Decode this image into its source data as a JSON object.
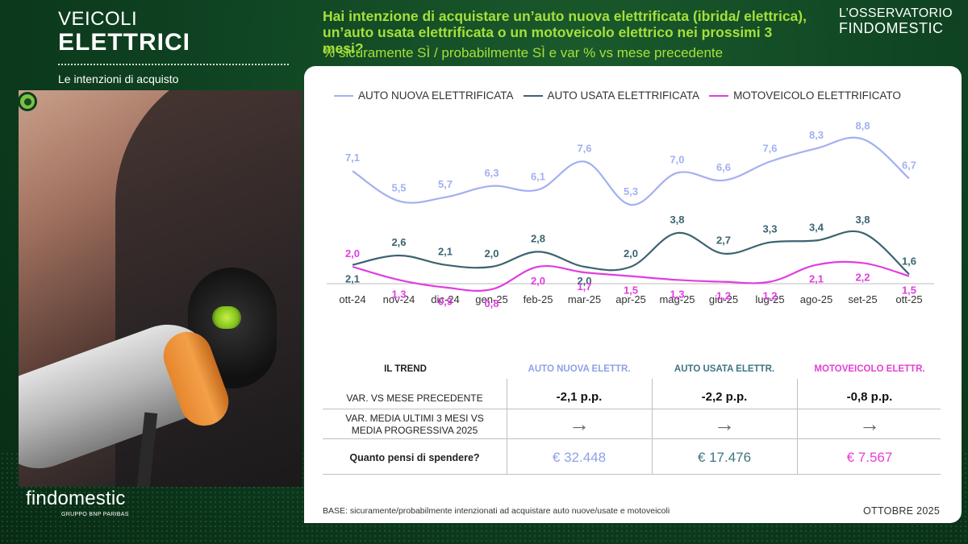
{
  "header": {
    "title_line1": "VEICOLI",
    "title_line2": "ELETTRICI",
    "subtitle": "Le intenzioni di acquisto",
    "question": "Hai intenzione di acquistare un’auto nuova elettrificata (ibrida/ elettrica), un’auto usata elettrificata o un motoveicolo elettrico nei prossimi 3 mesi?",
    "question_sub": "% sicuramente SÌ / probabilmente SÌ e var % vs mese precedente",
    "osservatorio_line1": "L’OSSERVATORIO",
    "osservatorio_line2": "FINDOMESTIC"
  },
  "logo": {
    "name": "findomestic",
    "group": "GRUPPO BNP PARIBAS"
  },
  "colors": {
    "nuova": "#a3b0f0",
    "usata": "#3b6470",
    "moto": "#e03ee0"
  },
  "chart_data": {
    "type": "line",
    "categories": [
      "ott-24",
      "nov-24",
      "dic-24",
      "gen-25",
      "feb-25",
      "mar-25",
      "apr-25",
      "mag-25",
      "giu-25",
      "lug-25",
      "ago-25",
      "set-25",
      "ott-25"
    ],
    "series": [
      {
        "name": "AUTO NUOVA ELETTRIFICATA",
        "values": [
          7.1,
          5.5,
          5.7,
          6.3,
          6.1,
          7.6,
          5.3,
          7.0,
          6.6,
          7.6,
          8.3,
          8.8,
          6.7
        ],
        "labels": [
          "7,1",
          "5,5",
          "5,7",
          "6,3",
          "6,1",
          "7,6",
          "5,3",
          "7,0",
          "6,6",
          "7,6",
          "8,3",
          "8,8",
          "6,7"
        ]
      },
      {
        "name": "AUTO USATA ELETTRIFICATA",
        "values": [
          2.1,
          2.6,
          2.1,
          2.0,
          2.8,
          2.0,
          2.0,
          3.8,
          2.7,
          3.3,
          3.4,
          3.8,
          1.6
        ],
        "labels": [
          "2,1",
          "2,6",
          "2,1",
          "2,0",
          "2,8",
          "2,0",
          "2,0",
          "3,8",
          "2,7",
          "3,3",
          "3,4",
          "3,8",
          "1,6"
        ]
      },
      {
        "name": "MOTOVEICOLO ELETTRIFICATO",
        "values": [
          2.0,
          1.3,
          0.9,
          0.8,
          2.0,
          1.7,
          1.5,
          1.3,
          1.2,
          1.2,
          2.1,
          2.2,
          1.5
        ],
        "labels": [
          "2,0",
          "1,3",
          "0,9",
          "0,8",
          "2,0",
          "1,7",
          "1,5",
          "1,3",
          "1,2",
          "1,2",
          "2,1",
          "2,2",
          "1,5"
        ]
      }
    ],
    "ylim": [
      0,
      10
    ],
    "grid": false,
    "legend": "top"
  },
  "trend": {
    "title": "IL TREND",
    "columns": [
      "AUTO NUOVA ELETTR.",
      "AUTO USATA ELETTR.",
      "MOTOVEICOLO ELETTR."
    ],
    "rows": {
      "var_label": "VAR. VS MESE PRECEDENTE",
      "var_values": [
        "-2,1 p.p.",
        "-2,2 p.p.",
        "-0,8 p.p."
      ],
      "media_label_1": "VAR.  MEDIA ULTIMI 3 MESI VS",
      "media_label_2": "MEDIA PROGRESSIVA  2025",
      "media_icons": [
        "arrow-right-icon",
        "arrow-right-icon",
        "arrow-right-icon"
      ],
      "spend_label": "Quanto pensi di spendere?",
      "spend_values": [
        "€ 32.448",
        "€ 17.476",
        "€ 7.567"
      ]
    }
  },
  "footer": {
    "base": "BASE: sicuramente/probabilmente intenzionati ad acquistare auto nuove/usate e motoveicoli",
    "date": "OTTOBRE 2025"
  }
}
